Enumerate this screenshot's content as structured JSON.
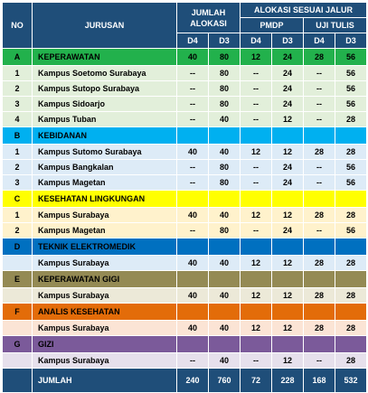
{
  "header": {
    "no": "NO",
    "jurusan": "JURUSAN",
    "jumlah_alokasi": "JUMLAH ALOKASI",
    "alokasi_sesuai_jalur": "ALOKASI SESUAI JALUR",
    "pmdp": "PMDP",
    "uji_tulis": "UJI TULIS",
    "d4": "D4",
    "d3": "D3"
  },
  "colors": {
    "header_bg": "#1f4e79",
    "A": "#22b14c",
    "B": "#00b0f0",
    "C": "#ffff00",
    "D": "#0070c0",
    "E": "#948a54",
    "F": "#e36c09",
    "G": "#7b5a9a"
  },
  "groups": [
    {
      "code": "A",
      "name": "KEPERAWATAN",
      "values": [
        "40",
        "80",
        "12",
        "24",
        "28",
        "56"
      ],
      "items": [
        {
          "no": "1",
          "name": "Kampus Soetomo Surabaya",
          "values": [
            "--",
            "80",
            "--",
            "24",
            "--",
            "56"
          ]
        },
        {
          "no": "2",
          "name": "Kampus Sutopo Surabaya",
          "values": [
            "--",
            "80",
            "--",
            "24",
            "--",
            "56"
          ]
        },
        {
          "no": "3",
          "name": "Kampus Sidoarjo",
          "values": [
            "--",
            "80",
            "--",
            "24",
            "--",
            "56"
          ]
        },
        {
          "no": "4",
          "name": "Kampus Tuban",
          "values": [
            "--",
            "40",
            "--",
            "12",
            "--",
            "28"
          ]
        }
      ]
    },
    {
      "code": "B",
      "name": "KEBIDANAN",
      "values": [
        "",
        "",
        "",
        "",
        "",
        ""
      ],
      "items": [
        {
          "no": "1",
          "name": "Kampus Sutomo Surabaya",
          "values": [
            "40",
            "40",
            "12",
            "12",
            "28",
            "28"
          ]
        },
        {
          "no": "2",
          "name": "Kampus Bangkalan",
          "values": [
            "--",
            "80",
            "--",
            "24",
            "--",
            "56"
          ]
        },
        {
          "no": "3",
          "name": "Kampus Magetan",
          "values": [
            "--",
            "80",
            "--",
            "24",
            "--",
            "56"
          ]
        }
      ]
    },
    {
      "code": "C",
      "name": "KESEHATAN LINGKUNGAN",
      "values": [
        "",
        "",
        "",
        "",
        "",
        ""
      ],
      "items": [
        {
          "no": "1",
          "name": "Kampus Surabaya",
          "values": [
            "40",
            "40",
            "12",
            "12",
            "28",
            "28"
          ]
        },
        {
          "no": "2",
          "name": "Kampus Magetan",
          "values": [
            "--",
            "80",
            "--",
            "24",
            "--",
            "56"
          ]
        }
      ]
    },
    {
      "code": "D",
      "name": "TEKNIK ELEKTROMEDIK",
      "values": [
        "",
        "",
        "",
        "",
        "",
        ""
      ],
      "items": [
        {
          "no": "",
          "name": "Kampus Surabaya",
          "values": [
            "40",
            "40",
            "12",
            "12",
            "28",
            "28"
          ]
        }
      ]
    },
    {
      "code": "E",
      "name": "KEPERAWATAN GIGI",
      "values": [
        "",
        "",
        "",
        "",
        "",
        ""
      ],
      "items": [
        {
          "no": "",
          "name": "Kampus Surabaya",
          "values": [
            "40",
            "40",
            "12",
            "12",
            "28",
            "28"
          ]
        }
      ]
    },
    {
      "code": "F",
      "name": "ANALIS KESEHATAN",
      "values": [
        "",
        "",
        "",
        "",
        "",
        ""
      ],
      "items": [
        {
          "no": "",
          "name": "Kampus Surabaya",
          "values": [
            "40",
            "40",
            "12",
            "12",
            "28",
            "28"
          ]
        }
      ]
    },
    {
      "code": "G",
      "name": "GIZI",
      "values": [
        "",
        "",
        "",
        "",
        "",
        ""
      ],
      "items": [
        {
          "no": "",
          "name": "Kampus Surabaya",
          "values": [
            "--",
            "40",
            "--",
            "12",
            "--",
            "28"
          ]
        }
      ]
    }
  ],
  "total": {
    "label": "JUMLAH",
    "values": [
      "240",
      "760",
      "72",
      "228",
      "168",
      "532"
    ]
  }
}
